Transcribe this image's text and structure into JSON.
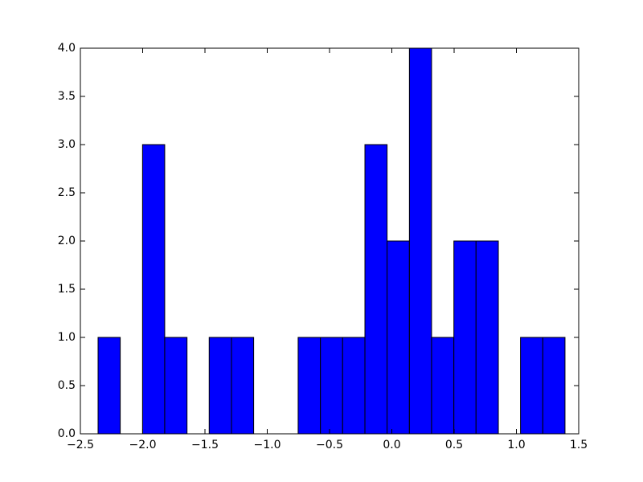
{
  "chart_data": {
    "type": "histogram",
    "bins": [
      -2.358,
      -2.18,
      -2.001,
      -1.823,
      -1.644,
      -1.466,
      -1.287,
      -1.109,
      -0.93,
      -0.752,
      -0.573,
      -0.395,
      -0.216,
      -0.038,
      0.141,
      0.319,
      0.498,
      0.676,
      0.855,
      1.033,
      1.212,
      1.39
    ],
    "counts": [
      1,
      0,
      3,
      1,
      0,
      1,
      1,
      0,
      0,
      1,
      1,
      1,
      3,
      2,
      4,
      1,
      2,
      2,
      0,
      1,
      1
    ],
    "color": "#0000ff",
    "xlim": [
      -2.5,
      1.5
    ],
    "xticks": [
      {
        "value": -2.5,
        "label": "−2.5"
      },
      {
        "value": -2.0,
        "label": "−2.0"
      },
      {
        "value": -1.5,
        "label": "−1.5"
      },
      {
        "value": -1.0,
        "label": "−1.0"
      },
      {
        "value": -0.5,
        "label": "−0.5"
      },
      {
        "value": 0.0,
        "label": "0.0"
      },
      {
        "value": 0.5,
        "label": "0.5"
      },
      {
        "value": 1.0,
        "label": "1.0"
      },
      {
        "value": 1.5,
        "label": "1.5"
      }
    ],
    "ylim": [
      0,
      4
    ],
    "yticks": [
      {
        "value": 0,
        "label": "0.0"
      },
      {
        "value": 0.5,
        "label": "0.5"
      },
      {
        "value": 1,
        "label": "1.0"
      },
      {
        "value": 1.5,
        "label": "1.5"
      },
      {
        "value": 2,
        "label": "2.0"
      },
      {
        "value": 2.5,
        "label": "2.5"
      },
      {
        "value": 3,
        "label": "3.0"
      },
      {
        "value": 3.5,
        "label": "3.5"
      },
      {
        "value": 4,
        "label": "4.0"
      }
    ]
  }
}
